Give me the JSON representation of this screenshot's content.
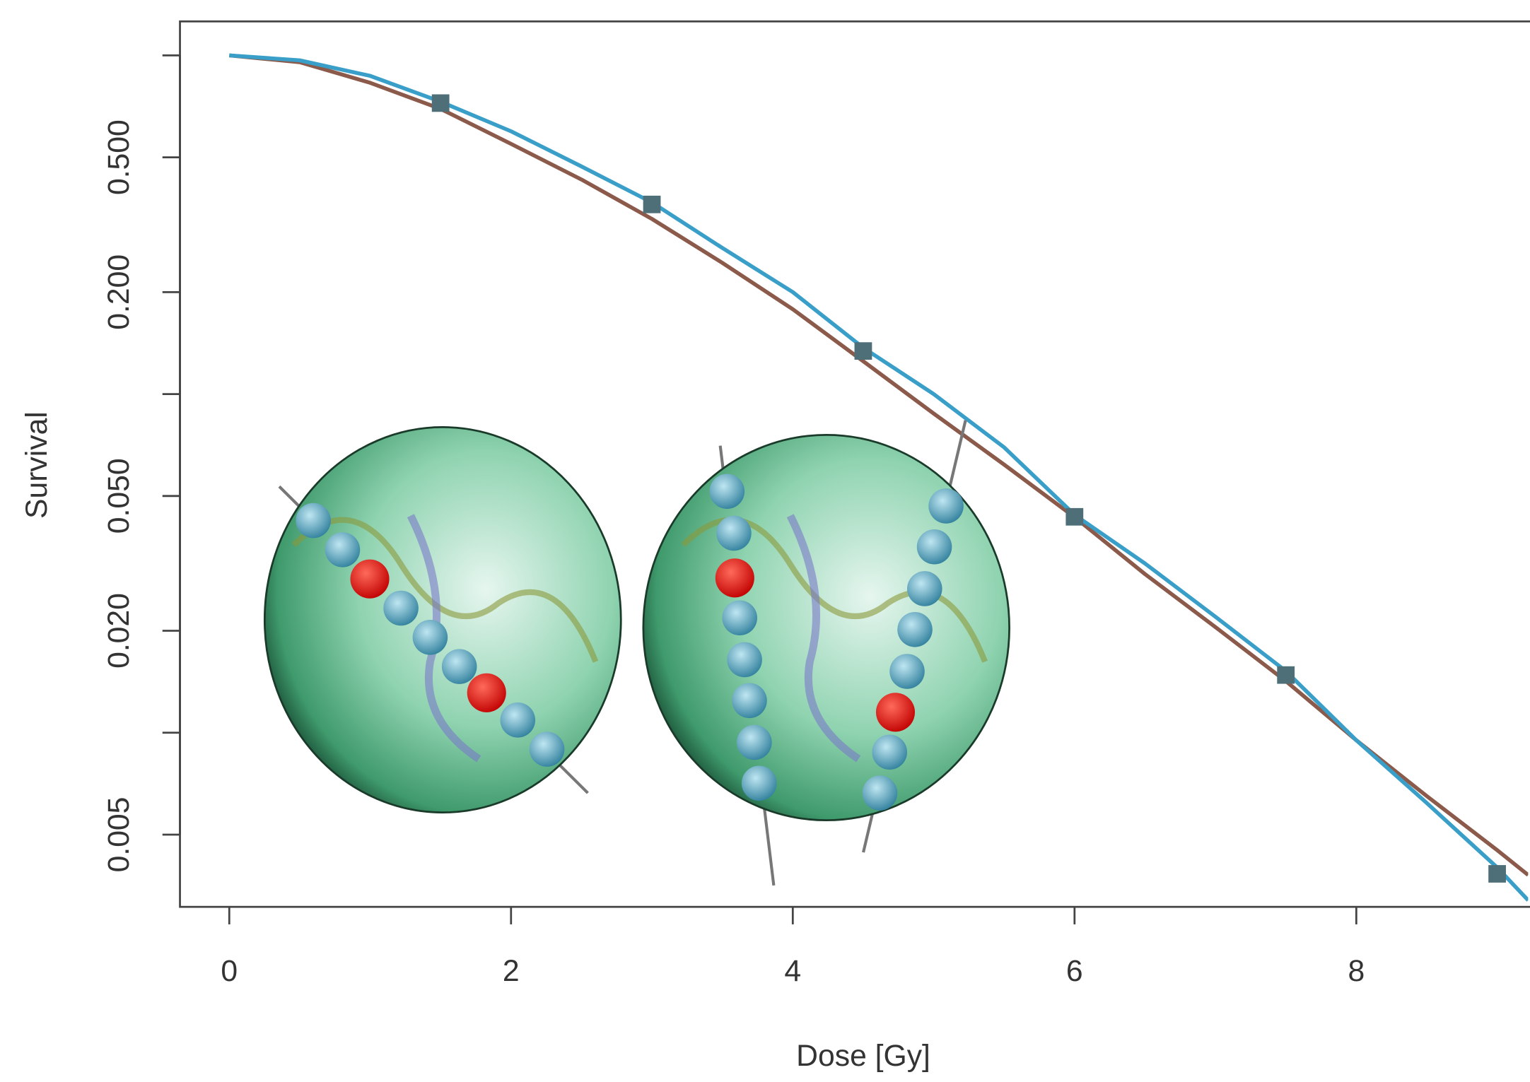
{
  "chart_data": {
    "type": "line",
    "x_label": "Dose [Gy]",
    "y_label": "Survival",
    "log_y": true,
    "xlim": [
      -0.35,
      9.22
    ],
    "ylim": [
      0.00306,
      1.26
    ],
    "xticks": [
      0,
      2,
      4,
      6,
      8
    ],
    "yticks": [
      {
        "value": 1,
        "label": null
      },
      {
        "value": 0.5,
        "label": "0.500"
      },
      {
        "value": 0.2,
        "label": "0.200"
      },
      {
        "value": 0.1,
        "label": null
      },
      {
        "value": 0.05,
        "label": "0.050"
      },
      {
        "value": 0.02,
        "label": "0.020"
      },
      {
        "value": 0.01,
        "label": null
      },
      {
        "value": 0.005,
        "label": "0.005"
      }
    ],
    "series": [
      {
        "color": "#8b5a4a",
        "style": "line",
        "x": [
          0,
          0.5,
          1,
          1.5,
          2,
          2.5,
          3,
          3.5,
          4,
          4.5,
          5,
          5.5,
          6,
          6.5,
          7,
          7.5,
          8,
          8.5,
          9,
          9.22
        ],
        "values": [
          1.0,
          0.955,
          0.83,
          0.695,
          0.548,
          0.43,
          0.329,
          0.244,
          0.178,
          0.125,
          0.0876,
          0.0619,
          0.0433,
          0.0294,
          0.0205,
          0.0142,
          0.0095,
          0.0065,
          0.0045,
          0.0038
        ]
      },
      {
        "color": "#3a9fc8",
        "style": "line",
        "x": [
          0,
          0.5,
          1,
          1.5,
          2,
          2.5,
          3,
          3.5,
          4,
          4.5,
          5,
          5.5,
          6,
          6.5,
          7,
          7.5,
          8,
          8.5,
          9,
          9.22
        ],
        "values": [
          1.0,
          0.967,
          0.87,
          0.73,
          0.597,
          0.47,
          0.368,
          0.27,
          0.2,
          0.137,
          0.1,
          0.0696,
          0.044,
          0.0316,
          0.022,
          0.0152,
          0.0095,
          0.0062,
          0.004,
          0.0032
        ]
      },
      {
        "color": "#4f6f78",
        "style": "points",
        "x": [
          1.5,
          3,
          4.5,
          6,
          7.5,
          9
        ],
        "values": [
          0.723,
          0.363,
          0.134,
          0.0434,
          0.0148,
          0.00383
        ]
      }
    ]
  }
}
